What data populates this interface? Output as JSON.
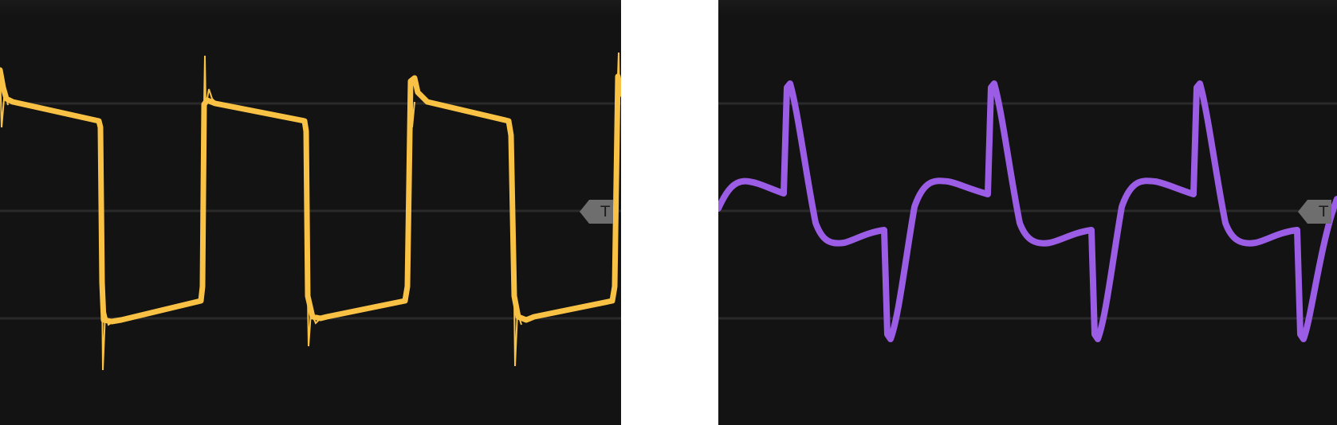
{
  "colors": {
    "left_trace": "#f9c245",
    "right_trace": "#9b5de5",
    "background": "#131313",
    "gridline": "#2a2a2a",
    "trigger_marker": "#6e6e6e"
  },
  "scopes": [
    {
      "id": "square-wave",
      "trace_color": "#f9c245",
      "trigger_label": "T"
    },
    {
      "id": "differentiated-wave",
      "trace_color": "#9b5de5",
      "trigger_label": "T"
    }
  ]
}
